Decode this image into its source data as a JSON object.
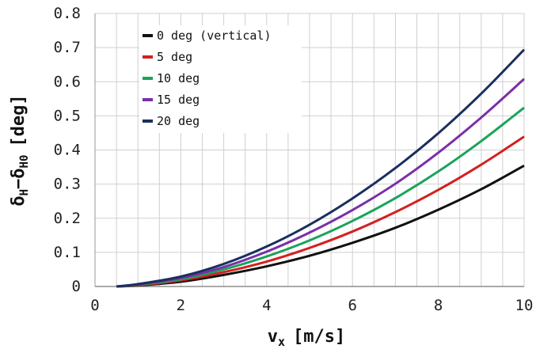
{
  "chart_data": {
    "type": "line",
    "xlabel": "v",
    "xlabel_sub": "x",
    "xlabel_unit": "[m/s]",
    "ylabel_parts": {
      "main1": "δ",
      "sub1": "H",
      "minus": "−",
      "main2": "δ",
      "sub2": "H0",
      "unit": "[deg]"
    },
    "xlim": [
      0,
      10
    ],
    "ylim": [
      0,
      0.8
    ],
    "xticks": [
      0,
      2,
      4,
      6,
      8,
      10
    ],
    "yticks": [
      0,
      0.1,
      0.2,
      0.3,
      0.4,
      0.5,
      0.6,
      0.7,
      0.8
    ],
    "grid": true,
    "legend_position": "top-left",
    "series": [
      {
        "name": "0 deg (vertical)",
        "color": "#111111",
        "x": [
          0.5,
          1,
          2,
          3,
          4,
          5,
          6,
          7,
          8,
          9,
          10
        ],
        "y": [
          0.0,
          0.003,
          0.014,
          0.034,
          0.059,
          0.09,
          0.128,
          0.172,
          0.225,
          0.285,
          0.354
        ]
      },
      {
        "name": "5 deg",
        "color": "#d42020",
        "x": [
          0.5,
          1,
          2,
          3,
          4,
          5,
          6,
          7,
          8,
          9,
          10
        ],
        "y": [
          0.0,
          0.004,
          0.018,
          0.042,
          0.073,
          0.113,
          0.161,
          0.218,
          0.283,
          0.357,
          0.439
        ]
      },
      {
        "name": "10 deg",
        "color": "#1aa35a",
        "x": [
          0.5,
          1,
          2,
          3,
          4,
          5,
          6,
          7,
          8,
          9,
          10
        ],
        "y": [
          0.0,
          0.005,
          0.021,
          0.05,
          0.088,
          0.135,
          0.192,
          0.259,
          0.337,
          0.426,
          0.524
        ]
      },
      {
        "name": "15 deg",
        "color": "#7a2fa8",
        "x": [
          0.5,
          1,
          2,
          3,
          4,
          5,
          6,
          7,
          8,
          9,
          10
        ],
        "y": [
          0.0,
          0.006,
          0.025,
          0.057,
          0.102,
          0.158,
          0.224,
          0.301,
          0.392,
          0.495,
          0.608
        ]
      },
      {
        "name": "20 deg",
        "color": "#1b2f5e",
        "x": [
          0.5,
          1,
          2,
          3,
          4,
          5,
          6,
          7,
          8,
          9,
          10
        ],
        "y": [
          0.0,
          0.007,
          0.029,
          0.066,
          0.117,
          0.181,
          0.258,
          0.347,
          0.449,
          0.565,
          0.694
        ]
      }
    ]
  }
}
